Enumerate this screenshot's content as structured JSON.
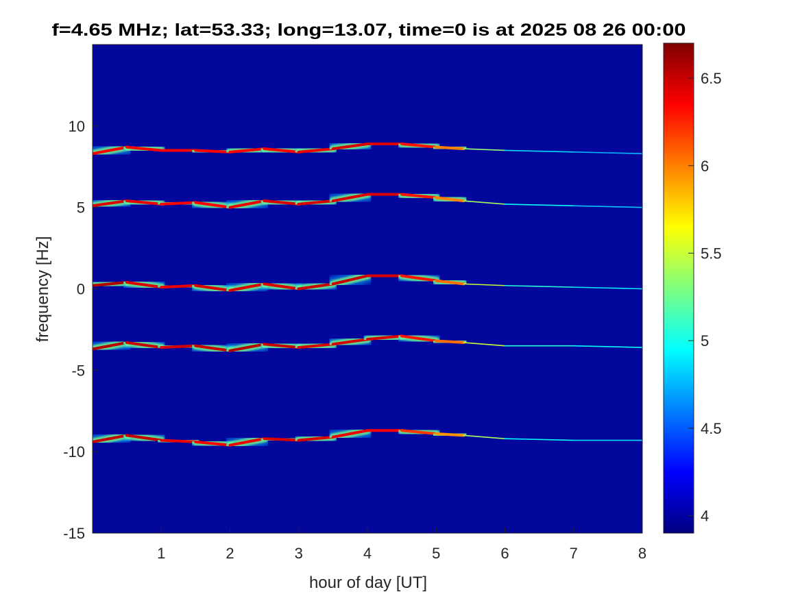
{
  "chart_data": {
    "type": "heatmap",
    "title": "f=4.65 MHz;  lat=53.33; long=13.07, time=0 is at 2025 08 26 00:00",
    "xlabel": "hour of day [UT]",
    "ylabel": "frequency [Hz]",
    "xlim": [
      0,
      8
    ],
    "ylim": [
      -15,
      15
    ],
    "xticks": [
      1,
      2,
      3,
      4,
      5,
      6,
      7,
      8
    ],
    "yticks": [
      -15,
      -10,
      -5,
      0,
      5,
      10
    ],
    "colormap": "jet",
    "clim": [
      3.9,
      6.7
    ],
    "colorbar_ticks": [
      4,
      4.5,
      5,
      5.5,
      6,
      6.5
    ],
    "background_value": 3.95,
    "grid": false,
    "ridges": [
      {
        "t": [
          0,
          0.5,
          1,
          1.5,
          2,
          2.5,
          3,
          3.5,
          4,
          4.5,
          5,
          5.4,
          6,
          7,
          8
        ],
        "f": [
          8.3,
          8.7,
          8.5,
          8.5,
          8.4,
          8.6,
          8.4,
          8.6,
          8.9,
          8.9,
          8.7,
          8.6,
          8.5,
          8.4,
          8.3
        ],
        "intensity": [
          6.4,
          6.3,
          6.4,
          6.3,
          6.4,
          6.3,
          6.4,
          6.4,
          6.5,
          6.4,
          6.2,
          5.8,
          4.9,
          4.8,
          4.7
        ]
      },
      {
        "t": [
          0,
          0.5,
          1,
          1.5,
          2,
          2.5,
          3,
          3.5,
          4,
          4.5,
          5,
          5.4,
          6,
          7,
          8
        ],
        "f": [
          5.1,
          5.4,
          5.2,
          5.3,
          5.0,
          5.4,
          5.2,
          5.4,
          5.8,
          5.8,
          5.6,
          5.4,
          5.2,
          5.1,
          5.0
        ],
        "intensity": [
          6.5,
          6.4,
          6.4,
          6.3,
          6.4,
          6.4,
          6.5,
          6.4,
          6.5,
          6.4,
          6.2,
          5.8,
          5.0,
          4.9,
          4.7
        ]
      },
      {
        "t": [
          0,
          0.5,
          1,
          1.5,
          2,
          2.5,
          3,
          3.5,
          4,
          4.5,
          5,
          5.4,
          6,
          7,
          8
        ],
        "f": [
          0.2,
          0.4,
          0.1,
          0.2,
          -0.1,
          0.3,
          0.0,
          0.3,
          0.8,
          0.8,
          0.5,
          0.3,
          0.2,
          0.1,
          0.0
        ],
        "intensity": [
          6.6,
          6.5,
          6.4,
          6.4,
          6.5,
          6.4,
          6.5,
          6.5,
          6.5,
          6.4,
          6.2,
          5.9,
          5.1,
          5.0,
          4.8
        ]
      },
      {
        "t": [
          0,
          0.5,
          1,
          1.5,
          2,
          2.5,
          3,
          3.5,
          4,
          4.5,
          5,
          5.4,
          6,
          7,
          8
        ],
        "f": [
          -3.7,
          -3.3,
          -3.6,
          -3.5,
          -3.8,
          -3.4,
          -3.6,
          -3.4,
          -3.1,
          -2.9,
          -3.2,
          -3.3,
          -3.5,
          -3.5,
          -3.6
        ],
        "intensity": [
          6.6,
          6.5,
          6.5,
          6.4,
          6.6,
          6.5,
          6.5,
          6.4,
          6.5,
          6.4,
          6.2,
          5.9,
          5.1,
          5.0,
          4.9
        ]
      },
      {
        "t": [
          0,
          0.5,
          1,
          1.5,
          2,
          2.5,
          3,
          3.5,
          4,
          4.5,
          5,
          5.4,
          6,
          7,
          8
        ],
        "f": [
          -9.4,
          -9.0,
          -9.3,
          -9.4,
          -9.6,
          -9.2,
          -9.3,
          -9.1,
          -8.7,
          -8.7,
          -8.9,
          -9.0,
          -9.2,
          -9.3,
          -9.3
        ],
        "intensity": [
          6.5,
          6.5,
          6.5,
          6.3,
          6.4,
          6.4,
          6.5,
          6.4,
          6.4,
          6.3,
          6.1,
          5.8,
          5.0,
          4.9,
          4.8
        ]
      }
    ]
  }
}
